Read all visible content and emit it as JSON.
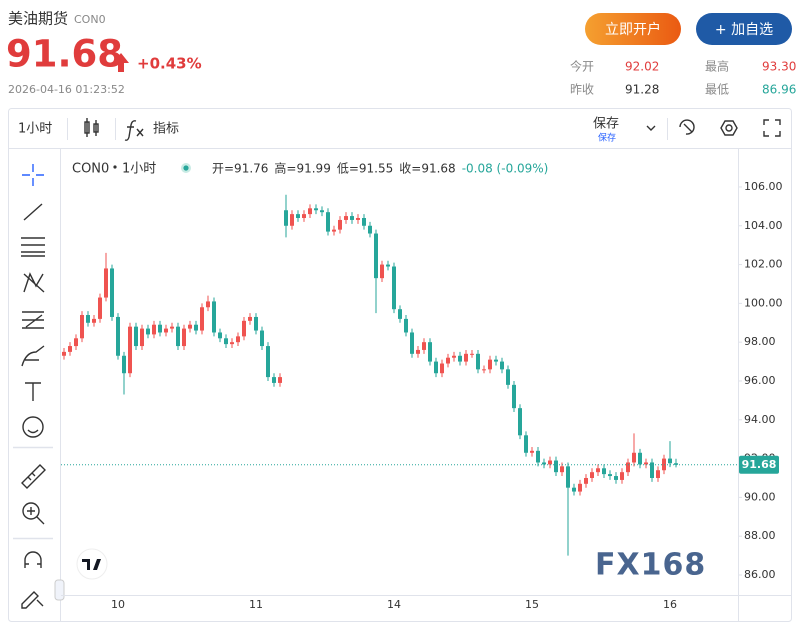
{
  "header": {
    "title": "美油期货",
    "symbol": "CON0",
    "price": "91.68",
    "change": "+0.43%",
    "timestamp": "2026-04-16 01:23:52",
    "buttons": [
      "立即开户",
      "+ 加自选"
    ],
    "stats": [
      [
        "今开",
        "92.02"
      ],
      [
        "最高",
        "93.30"
      ],
      [
        "昨收",
        "91.28"
      ],
      [
        "最低",
        "86.96"
      ]
    ]
  },
  "toolbar": {
    "interval": "1小时",
    "indicators": "指标",
    "save": "保存",
    "save_sub": "保存"
  },
  "chart_data": {
    "type": "candlestick",
    "symbol": "CON0",
    "interval": "1小时",
    "legend": [
      "开=91.76",
      "高=91.99",
      "低=91.55",
      "收=91.68",
      "-0.08 (-0.09%)"
    ],
    "categories": [
      null,
      null,
      null,
      null,
      null,
      null,
      null,
      null,
      null,
      "10",
      null,
      null,
      null,
      null,
      null,
      null,
      null,
      null,
      null,
      null,
      null,
      null,
      null,
      null,
      null,
      null,
      null,
      null,
      null,
      null,
      null,
      null,
      "11",
      null,
      null,
      null,
      null,
      null,
      null,
      null,
      null,
      null,
      null,
      null,
      null,
      null,
      null,
      null,
      null,
      null,
      null,
      null,
      null,
      null,
      null,
      "14",
      null,
      null,
      null,
      null,
      null,
      null,
      null,
      null,
      null,
      null,
      null,
      null,
      null,
      null,
      null,
      null,
      null,
      null,
      null,
      null,
      null,
      null,
      "15",
      null,
      null,
      null,
      null,
      null,
      null,
      null,
      null,
      null,
      null,
      null,
      null,
      null,
      null,
      null,
      null,
      null,
      null,
      null,
      null,
      null,
      null,
      "16",
      null
    ],
    "open": [
      97.3,
      97.5,
      97.8,
      98.2,
      99.4,
      99.0,
      99.2,
      100.3,
      101.8,
      99.3,
      97.3,
      96.4,
      98.8,
      97.8,
      98.7,
      98.4,
      98.9,
      98.5,
      98.7,
      98.8,
      97.8,
      98.7,
      98.9,
      98.6,
      99.8,
      100.1,
      98.5,
      98.2,
      97.9,
      98.0,
      98.3,
      99.1,
      99.3,
      98.6,
      97.8,
      96.2,
      95.9,
      104.8,
      104.0,
      104.6,
      104.4,
      104.6,
      104.9,
      104.8,
      104.7,
      103.7,
      103.8,
      104.3,
      104.5,
      104.3,
      104.4,
      104.0,
      103.6,
      101.3,
      102.0,
      101.9,
      99.7,
      99.2,
      98.5,
      97.4,
      97.6,
      98.0,
      97.0,
      96.4,
      96.9,
      97.2,
      97.3,
      97.0,
      97.4,
      97.4,
      96.6,
      96.6,
      97.1,
      97.0,
      96.6,
      95.8,
      94.6,
      93.2,
      92.3,
      92.4,
      91.8,
      91.7,
      91.9,
      91.3,
      91.6,
      90.5,
      90.3,
      90.7,
      91.0,
      91.3,
      91.5,
      91.2,
      91.1,
      90.9,
      91.3,
      91.8,
      92.3,
      91.7,
      91.8,
      91.0,
      91.4,
      92.0,
      91.76
    ],
    "high": [
      97.7,
      98.0,
      98.4,
      99.6,
      99.6,
      99.4,
      100.5,
      102.6,
      102.0,
      99.5,
      97.5,
      99.0,
      99.0,
      98.9,
      98.9,
      99.1,
      99.1,
      98.9,
      99.0,
      99.0,
      98.9,
      99.1,
      99.1,
      100.0,
      100.4,
      100.3,
      98.7,
      98.4,
      98.2,
      98.5,
      99.3,
      99.5,
      99.5,
      98.8,
      98.0,
      96.4,
      96.4,
      105.6,
      104.8,
      104.8,
      104.8,
      105.1,
      105.1,
      105.0,
      104.9,
      104.0,
      104.5,
      104.7,
      104.7,
      104.6,
      104.6,
      104.2,
      103.8,
      102.2,
      102.2,
      102.1,
      99.9,
      99.4,
      98.7,
      97.8,
      98.2,
      98.2,
      97.2,
      97.1,
      97.4,
      97.5,
      97.5,
      97.6,
      97.6,
      97.6,
      96.8,
      97.3,
      97.3,
      97.2,
      96.8,
      96.0,
      94.8,
      93.4,
      92.6,
      92.6,
      92.0,
      92.1,
      92.1,
      91.8,
      91.8,
      90.7,
      90.9,
      91.2,
      91.5,
      91.7,
      91.7,
      91.4,
      91.3,
      91.5,
      92.0,
      93.3,
      92.5,
      92.0,
      92.0,
      91.6,
      92.2,
      92.9,
      91.99
    ],
    "low": [
      97.1,
      97.3,
      97.6,
      98.0,
      98.8,
      98.8,
      99.0,
      100.1,
      99.1,
      97.1,
      95.3,
      96.2,
      97.6,
      97.6,
      98.2,
      98.2,
      98.3,
      98.3,
      98.5,
      97.6,
      97.6,
      98.5,
      98.4,
      98.4,
      99.6,
      98.3,
      98.0,
      97.7,
      97.7,
      97.8,
      98.1,
      98.9,
      98.4,
      97.6,
      96.0,
      95.7,
      95.7,
      103.4,
      103.8,
      104.2,
      104.2,
      104.4,
      104.6,
      104.5,
      103.5,
      103.5,
      103.6,
      104.1,
      104.1,
      104.1,
      103.8,
      103.4,
      99.5,
      101.1,
      101.7,
      99.5,
      99.0,
      98.3,
      97.2,
      97.2,
      97.4,
      96.8,
      96.2,
      96.2,
      96.7,
      97.0,
      96.8,
      96.8,
      97.2,
      96.4,
      96.4,
      96.4,
      96.8,
      96.4,
      95.6,
      94.4,
      93.0,
      92.1,
      92.1,
      91.6,
      91.5,
      91.5,
      91.1,
      91.1,
      87.0,
      90.1,
      90.1,
      90.5,
      90.8,
      91.1,
      91.0,
      90.9,
      90.7,
      90.7,
      91.1,
      91.6,
      91.5,
      91.5,
      90.8,
      90.8,
      91.2,
      91.56,
      91.55
    ],
    "close": [
      97.5,
      97.8,
      98.2,
      99.4,
      99.0,
      99.2,
      100.3,
      101.8,
      99.3,
      97.3,
      96.4,
      98.8,
      97.8,
      98.7,
      98.4,
      98.9,
      98.5,
      98.7,
      98.8,
      97.8,
      98.7,
      98.9,
      98.6,
      99.8,
      100.1,
      98.5,
      98.2,
      97.9,
      98.0,
      98.3,
      99.1,
      99.3,
      98.6,
      97.8,
      96.2,
      95.9,
      96.2,
      104.0,
      104.6,
      104.4,
      104.6,
      104.9,
      104.8,
      104.7,
      103.7,
      103.8,
      104.3,
      104.5,
      104.3,
      104.4,
      104.0,
      103.6,
      101.3,
      102.0,
      101.9,
      99.7,
      99.2,
      98.5,
      97.4,
      97.6,
      98.0,
      97.0,
      96.4,
      96.9,
      97.2,
      97.3,
      97.0,
      97.4,
      97.4,
      96.6,
      96.6,
      97.1,
      97.0,
      96.6,
      95.8,
      94.6,
      93.2,
      92.3,
      92.4,
      91.8,
      91.7,
      91.9,
      91.3,
      91.6,
      90.5,
      90.3,
      90.7,
      91.0,
      91.3,
      91.5,
      91.2,
      91.1,
      90.9,
      91.3,
      91.8,
      92.3,
      91.7,
      91.8,
      91.0,
      91.4,
      92.0,
      91.76,
      91.68
    ],
    "up_color": "#ef5350",
    "down_color": "#26a69a",
    "ylim": [
      85,
      107.9
    ],
    "yticks": [
      {
        "value": 86,
        "label": "86.00"
      },
      {
        "value": 88,
        "label": "88.00"
      },
      {
        "value": 90,
        "label": "90.00"
      },
      {
        "value": 92,
        "label": "92.00"
      },
      {
        "value": 94,
        "label": "94.00"
      },
      {
        "value": 96,
        "label": "96.00"
      },
      {
        "value": 98,
        "label": "98.00"
      },
      {
        "value": 100,
        "label": "100.00"
      },
      {
        "value": 102,
        "label": "102.00"
      },
      {
        "value": 104,
        "label": "104.00"
      },
      {
        "value": 106,
        "label": "106.00"
      }
    ],
    "watermark": "FX168"
  }
}
